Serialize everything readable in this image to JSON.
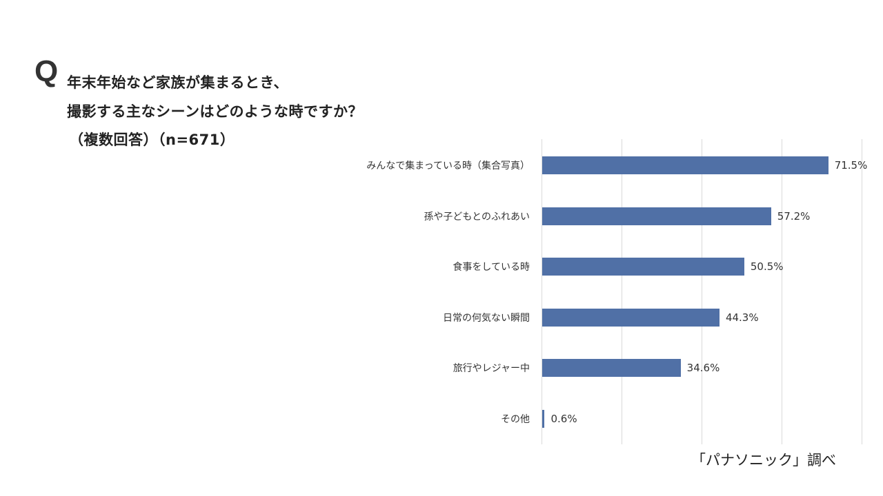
{
  "question": {
    "mark": "Q",
    "line1": "年末年始など家族が集まるとき、",
    "line2": "撮影する主なシーンはどのような時ですか？",
    "line3": "（複数回答）（n=671）"
  },
  "source": "「パナソニック」調べ",
  "colors": {
    "bar": "#5070a6",
    "grid": "#d9d9d9",
    "text": "#333333"
  },
  "chart_data": {
    "type": "bar",
    "orientation": "horizontal",
    "title": "年末年始など家族が集まるとき、撮影する主なシーンはどのような時ですか？（複数回答）（n=671）",
    "categories": [
      "みんなで集まっている時（集合写真）",
      "孫や子どもとのふれあい",
      "食事をしている時",
      "日常の何気ない瞬間",
      "旅行やレジャー中",
      "その他"
    ],
    "values": [
      71.5,
      57.2,
      50.5,
      44.3,
      34.6,
      0.6
    ],
    "value_labels": [
      "71.5%",
      "57.2%",
      "50.5%",
      "44.3%",
      "34.6%",
      "0.6%"
    ],
    "unit": "%",
    "xlabel": "",
    "ylabel": "",
    "xlim": [
      0,
      80
    ],
    "grid": true,
    "gridlines_at": [
      0,
      20,
      40,
      60,
      80
    ],
    "legend": null,
    "annotation": "「パナソニック」調べ"
  }
}
